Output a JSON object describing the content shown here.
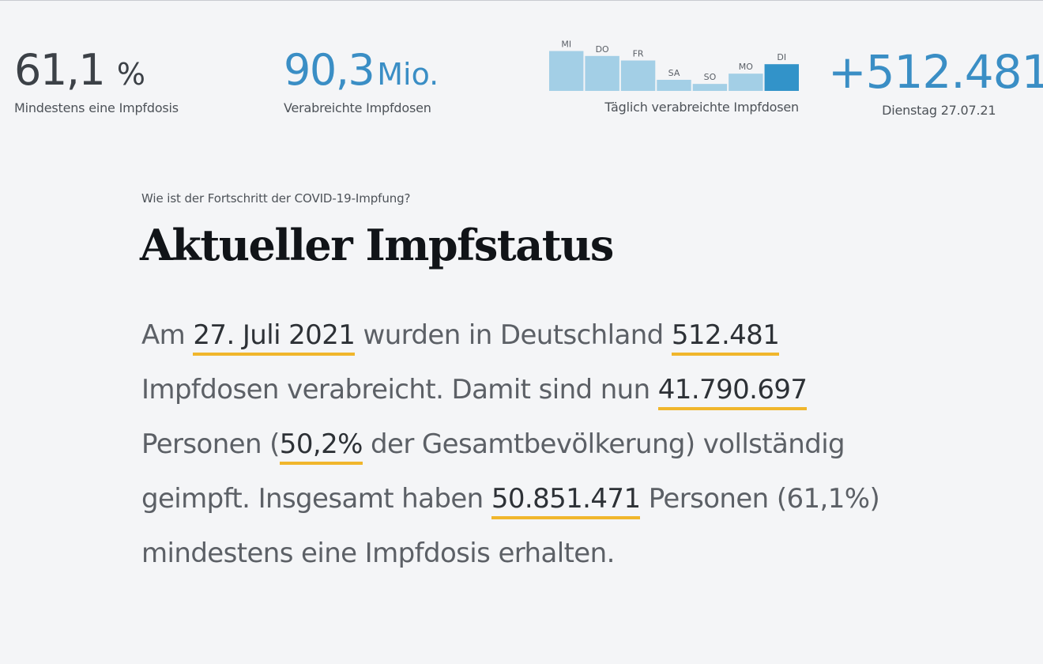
{
  "stats": {
    "first_dose": {
      "value": "61,1",
      "unit": "%",
      "caption": "Mindestens eine Impfdosis"
    },
    "total_doses": {
      "value": "90,3",
      "unit": "Mio.",
      "caption": "Verabreichte Impfdosen"
    },
    "daily": {
      "value": "+512.481",
      "caption": "Dienstag 27.07.21"
    }
  },
  "daily_chart": {
    "caption": "Täglich verabreichte Impfdosen",
    "chart_data": {
      "type": "bar",
      "categories": [
        "MI",
        "DO",
        "FR",
        "SA",
        "SO",
        "MO",
        "DI"
      ],
      "values": [
        0.97,
        0.85,
        0.74,
        0.27,
        0.17,
        0.42,
        0.65
      ],
      "value_unit": "relative to chart maximum",
      "highlight_index": 6
    }
  },
  "colors": {
    "accent": "#3a8ec5",
    "bar_light": "#a3cfe6",
    "bar_highlight": "#3293c9",
    "underline": "#f0b62c"
  },
  "article": {
    "kicker": "Wie ist der Fortschritt der COVID-19-Impfung?",
    "title": "Aktueller Impfstatus",
    "text": {
      "p1": "Am ",
      "date": "27. Juli 2021",
      "p2": " wurden in Deutschland ",
      "daily_doses": "512.481",
      "p3": " Impfdosen verabreicht. Damit sind nun ",
      "fully_vaccinated": "41.790.697",
      "p4": " Personen (",
      "fully_pct": "50,2%",
      "p5": " der Gesamtbevölkerung) vollständig geimpft. Insgesamt haben ",
      "at_least_one": "50.851.471",
      "p6": " Personen (61,1%) mindestens eine Impfdosis erhalten."
    }
  }
}
